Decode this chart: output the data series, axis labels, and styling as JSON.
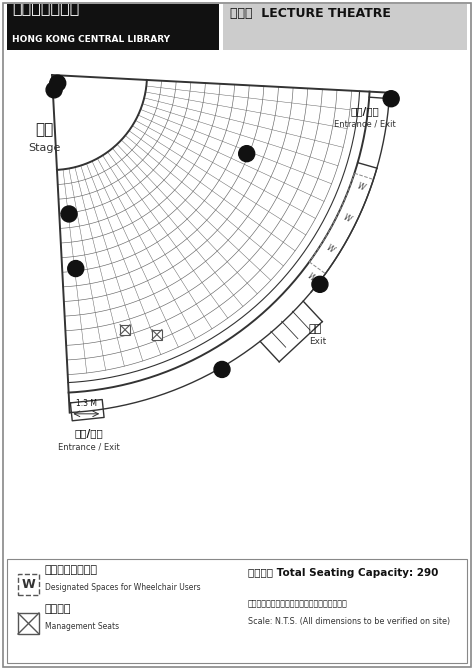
{
  "title_left_cn": "香港中央圖書館",
  "title_left_en": "HONG KONG CENTRAL LIBRARY",
  "title_right_cn": "演講廳",
  "title_right_en": "LECTURE THEATRE",
  "stage_cn": "舞台",
  "stage_en": "Stage",
  "entrance_top_cn": "入口/出口",
  "entrance_top_en": "Entrance / Exit",
  "exit_right_cn": "出口",
  "exit_right_en": "Exit",
  "entrance_bottom_cn": "入口/出口",
  "entrance_bottom_en": "Entrance / Exit",
  "dimension_label": "1.3 M",
  "wheelchair_cn": "輪椅人士專用位置",
  "wheelchair_en": "Designated Spaces for Wheelchair Users",
  "management_cn": "場館留座",
  "management_en": "Management Seats",
  "capacity_cn": "座位總數",
  "capacity_en": "Total Seating Capacity: 290",
  "scale_cn": "此圖非按比例繪製（所有尺寸以現場量度為準）",
  "scale_en": "Scale: N.T.S. (All dimensions to be verified on site)",
  "bg_color": "#ffffff",
  "header_left_bg": "#111111",
  "header_right_bg": "#cccccc",
  "line_color": "#333333",
  "dot_color": "#111111",
  "seat_line_color": "#666666"
}
